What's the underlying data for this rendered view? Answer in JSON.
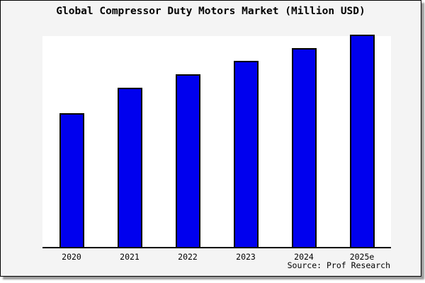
{
  "chart": {
    "title": "Global Compressor Duty Motors Market (Million USD)",
    "source": "Source: Prof Research",
    "colors": {
      "bar_fill": "#0000ee",
      "bar_border": "#000000",
      "card_background": "#f4f4f4",
      "plot_background": "#ffffff",
      "axis": "#000000",
      "shadow": "#9b9b9b"
    }
  },
  "chart_data": {
    "type": "bar",
    "title": "Global Compressor Duty Motors Market (Million USD)",
    "categories": [
      "2020",
      "2021",
      "2022",
      "2023",
      "2024",
      "2025e"
    ],
    "values": [
      62.7,
      75.0,
      81.3,
      87.7,
      93.7,
      100.0
    ],
    "value_units": "relative bar height % (no y-axis labels shown in image)",
    "xlabel": "",
    "ylabel": "",
    "ylim": [
      0,
      100
    ],
    "grid": false,
    "legend": false,
    "annotations": [
      "Source: Prof Research"
    ]
  }
}
